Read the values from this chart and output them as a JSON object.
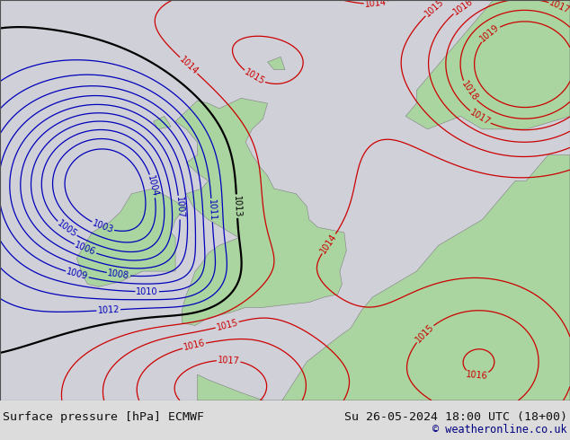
{
  "title_left": "Surface pressure [hPa] ECMWF",
  "title_right": "Su 26-05-2024 18:00 UTC (18+00)",
  "copyright": "© weatheronline.co.uk",
  "bg_color": "#dcdcdc",
  "land_color": "#aad4a0",
  "border_color": "#808080",
  "blue_color": "#0000bb",
  "red_color": "#cc0000",
  "black_color": "#000000",
  "label_fontsize": 7,
  "title_fontsize": 9.5,
  "figsize": [
    6.34,
    4.9
  ],
  "dpi": 100,
  "xlim": [
    -14,
    12
  ],
  "ylim": [
    47,
    62.5
  ],
  "map_bg": "#d0d0d8"
}
